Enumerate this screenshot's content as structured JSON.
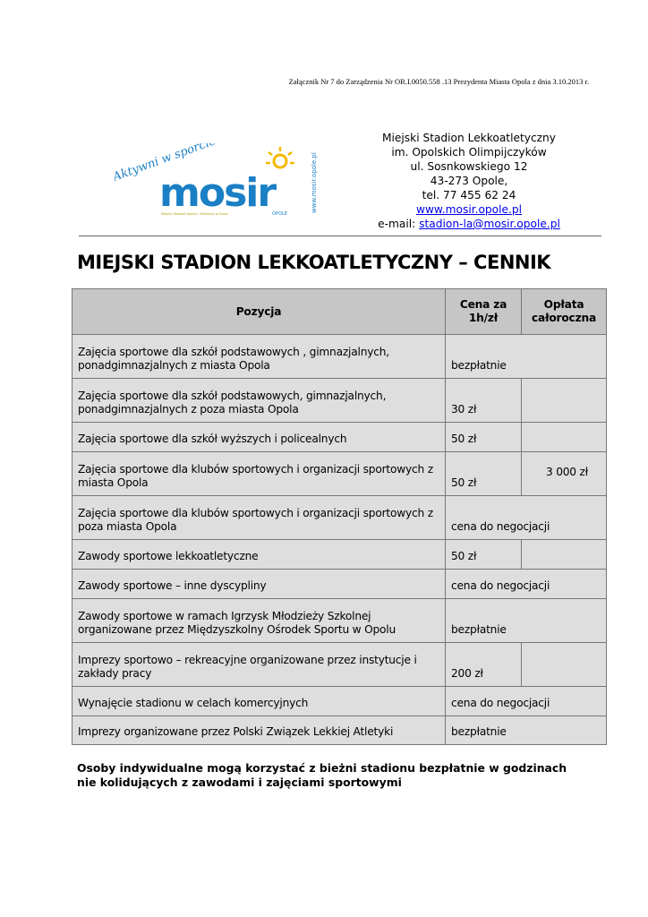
{
  "reference": "Załącznik Nr 7 do Zarządzenia Nr OR.I.0050.558 .13 Prezydenta Miasta Opola z dnia 3.10.2013 r.",
  "logo": {
    "slogan": "Aktywni w sporcie",
    "name": "mosir",
    "subtitle": "Miejski Ośrodek Sportu i Rekreacji w Opolu",
    "city": "OPOLE",
    "url": "www.mosir.opole.pl",
    "colors": {
      "blue": "#1a7fc4",
      "yellow": "#f5b800"
    }
  },
  "address": {
    "line1": "Miejski Stadion Lekkoatletyczny",
    "line2": "im. Opolskich Olimpijczyków",
    "line3": "ul. Sosnkowskiego 12",
    "line4": "43-273 Opole,",
    "line5": "tel. 77 455 62 24",
    "website": "www.mosir.opole.pl",
    "email_label": "e-mail: ",
    "email": "stadion-la@mosir.opole.pl"
  },
  "title": "MIEJSKI STADION LEKKOATLETYCZNY – CENNIK",
  "table": {
    "headers": [
      "Pozycja",
      "Cena za 1h/zł",
      "Opłata całoroczna"
    ],
    "rows": [
      {
        "item": "Zajęcia sportowe dla szkół podstawowych , gimnazjalnych, ponadgimnazjalnych z miasta Opola",
        "price": "bezpłatnie",
        "span": true
      },
      {
        "item": "Zajęcia sportowe dla szkół podstawowych, gimnazjalnych, ponadgimnazjalnych z poza miasta Opola",
        "price": "30 zł"
      },
      {
        "item": "Zajęcia sportowe dla szkół wyższych i policealnych",
        "price": "50 zł"
      },
      {
        "item": "Zajęcia sportowe dla klubów sportowych i organizacji sportowych z miasta Opola",
        "price": "50 zł",
        "annual": "3 000 zł"
      },
      {
        "item": "Zajęcia sportowe dla klubów sportowych  i organizacji sportowych z poza miasta Opola",
        "price": "cena do negocjacji",
        "span": true
      },
      {
        "item": "Zawody sportowe lekkoatletyczne",
        "price": "50 zł"
      },
      {
        "item": "Zawody sportowe – inne dyscypliny",
        "price": "cena do negocjacji",
        "span": true
      },
      {
        "item": "Zawody sportowe w ramach Igrzysk Młodzieży Szkolnej organizowane przez Międzyszkolny Ośrodek Sportu w Opolu",
        "price": "bezpłatnie",
        "span": true
      },
      {
        "item": "Imprezy sportowo – rekreacyjne organizowane przez instytucje i zakłady pracy",
        "price": "200 zł"
      },
      {
        "item": "Wynajęcie stadionu w celach komercyjnych",
        "price": "cena do negocjacji",
        "span": true
      },
      {
        "item": "Imprezy organizowane przez Polski Związek Lekkiej Atletyki",
        "price": "bezpłatnie",
        "span": true
      }
    ]
  },
  "note": "Osoby indywidualne mogą korzystać z bieżni stadionu bezpłatnie w godzinach nie kolidujących z zawodami i zajęciami sportowymi"
}
